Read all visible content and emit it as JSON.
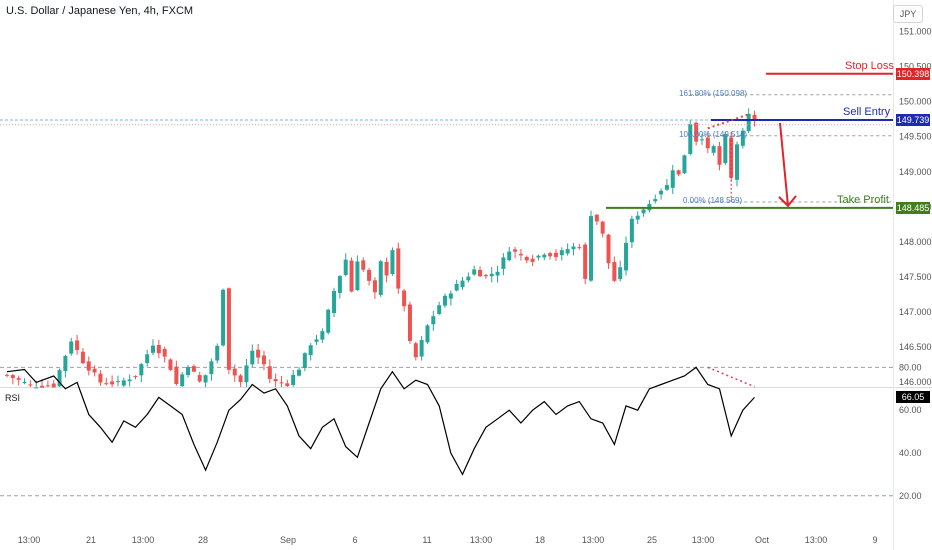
{
  "title": "U.S. Dollar / Japanese Yen, 4h, FXCM",
  "currency_button": "JPY",
  "rsi_label": "RSI",
  "colors": {
    "up": "#26a69a",
    "down": "#ef5350",
    "stop_loss": "#e0252a",
    "sell_entry": "#1f2ab3",
    "take_profit": "#3f7d1e",
    "rsi_line": "#000000",
    "divergence": "#e04050",
    "fib": "#4a7bbf"
  },
  "trade_levels": {
    "stop_loss": {
      "label": "Stop Loss",
      "price": 150.398,
      "tag": "150.398"
    },
    "sell_entry": {
      "label": "Sell Entry",
      "price": 149.739,
      "tag": "149.739"
    },
    "take_profit": {
      "label": "Take Profit",
      "price": 148.485,
      "tag": "148.485"
    }
  },
  "fib_levels": [
    {
      "label": "161.80% (150.098)",
      "price": 150.098
    },
    {
      "label": "100.00% (149.514)",
      "price": 149.514
    },
    {
      "label": "0.00% (148.569)",
      "price": 148.569
    }
  ],
  "rsi_value": {
    "tag": "66.05",
    "value": 66.05
  },
  "chart_data": [
    {
      "type": "candlestick",
      "title": "U.S. Dollar / Japanese Yen, 4h, FXCM",
      "ylim": [
        145.93,
        151.45
      ],
      "y_ticks": [
        "151.000",
        "150.500",
        "150.000",
        "149.500",
        "149.000",
        "148.500",
        "148.000",
        "147.500",
        "147.000",
        "146.500",
        "146.000"
      ],
      "x_ticks": [
        "13:00",
        "21",
        "13:00",
        "28",
        "Sep",
        "6",
        "11",
        "13:00",
        "18",
        "13:00",
        "25",
        "13:00",
        "Oct",
        "13:00",
        "9"
      ],
      "close_path": [
        [
          0,
          146.1
        ],
        [
          4,
          145.95
        ],
        [
          8,
          145.95
        ],
        [
          11,
          146.6
        ],
        [
          13,
          146.3
        ],
        [
          16,
          146.0
        ],
        [
          19,
          145.98
        ],
        [
          22,
          146.1
        ],
        [
          25,
          146.55
        ],
        [
          27,
          146.35
        ],
        [
          28,
          146.2
        ],
        [
          29,
          145.97
        ],
        [
          31,
          146.25
        ],
        [
          33,
          146.0
        ],
        [
          34,
          146.1
        ],
        [
          36,
          146.5
        ],
        [
          37,
          147.35
        ],
        [
          38,
          146.2
        ],
        [
          40,
          146.0
        ],
        [
          42,
          146.45
        ],
        [
          44,
          146.25
        ],
        [
          45,
          146.05
        ],
        [
          46,
          146.0
        ],
        [
          48,
          145.98
        ],
        [
          50,
          146.2
        ],
        [
          52,
          146.55
        ],
        [
          54,
          146.7
        ],
        [
          56,
          147.3
        ],
        [
          58,
          147.75
        ],
        [
          59,
          147.3
        ],
        [
          60,
          147.75
        ],
        [
          61,
          147.6
        ],
        [
          63,
          147.25
        ],
        [
          64,
          147.7
        ],
        [
          65,
          147.55
        ],
        [
          66,
          147.9
        ],
        [
          67,
          147.3
        ],
        [
          68,
          147.1
        ],
        [
          69,
          146.55
        ],
        [
          70,
          146.35
        ],
        [
          72,
          146.8
        ],
        [
          74,
          147.1
        ],
        [
          76,
          147.3
        ],
        [
          78,
          147.45
        ],
        [
          80,
          147.6
        ],
        [
          82,
          147.5
        ],
        [
          84,
          147.6
        ],
        [
          86,
          147.9
        ],
        [
          88,
          147.8
        ],
        [
          90,
          147.75
        ],
        [
          92,
          147.85
        ],
        [
          94,
          147.8
        ],
        [
          96,
          147.9
        ],
        [
          98,
          147.95
        ],
        [
          99,
          147.45
        ],
        [
          100,
          148.4
        ],
        [
          101,
          148.3
        ],
        [
          102,
          148.1
        ],
        [
          103,
          147.7
        ],
        [
          104,
          147.45
        ],
        [
          105,
          147.6
        ],
        [
          106,
          148.0
        ],
        [
          107,
          148.3
        ],
        [
          108,
          148.4
        ],
        [
          110,
          148.55
        ],
        [
          112,
          148.75
        ],
        [
          113,
          148.8
        ],
        [
          114,
          149.05
        ],
        [
          115,
          148.95
        ],
        [
          116,
          149.25
        ],
        [
          117,
          149.7
        ],
        [
          118,
          149.45
        ],
        [
          119,
          149.5
        ],
        [
          120,
          149.3
        ],
        [
          121,
          149.35
        ],
        [
          122,
          149.1
        ],
        [
          123,
          149.5
        ],
        [
          124,
          148.9
        ],
        [
          125,
          149.4
        ],
        [
          126,
          149.55
        ],
        [
          127,
          149.8
        ],
        [
          128,
          149.74
        ]
      ]
    },
    {
      "type": "line",
      "title": "RSI",
      "ylim": [
        18,
        87
      ],
      "y_ticks": [
        "80.00",
        "60.00",
        "40.00",
        "20.00"
      ],
      "reference_lines": [
        80,
        20
      ],
      "x": [
        0,
        3,
        5,
        8,
        10,
        12,
        14,
        16,
        18,
        20,
        22,
        24,
        26,
        28,
        30,
        32,
        34,
        36,
        38,
        40,
        42,
        44,
        46,
        48,
        50,
        52,
        54,
        56,
        58,
        60,
        62,
        64,
        66,
        68,
        70,
        72,
        74,
        76,
        78,
        80,
        82,
        84,
        86,
        88,
        90,
        92,
        94,
        96,
        98,
        100,
        102,
        104,
        106,
        108,
        110,
        112,
        114,
        116,
        118,
        120,
        122,
        124,
        126,
        128
      ],
      "values": [
        78,
        79,
        73,
        76,
        70,
        73,
        58,
        52,
        45,
        55,
        52,
        58,
        66,
        62,
        58,
        44,
        32,
        45,
        60,
        65,
        72,
        68,
        70,
        62,
        48,
        42,
        52,
        56,
        43,
        38,
        54,
        70,
        78,
        70,
        74,
        72,
        62,
        40,
        30,
        42,
        52,
        56,
        60,
        54,
        60,
        64,
        58,
        62,
        64,
        56,
        54,
        44,
        62,
        60,
        70,
        72,
        74,
        76,
        80,
        72,
        70,
        48,
        60,
        66
      ],
      "divergence_price": [
        [
          120,
          149.62
        ],
        [
          127,
          149.82
        ]
      ],
      "divergence_rsi": [
        [
          120,
          80
        ],
        [
          128,
          71
        ]
      ]
    }
  ]
}
